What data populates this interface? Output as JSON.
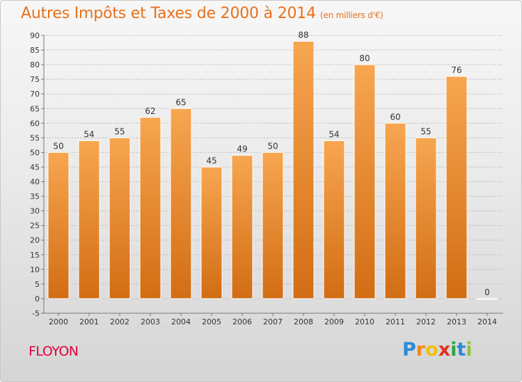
{
  "header": {
    "title": "Autres Impôts et Taxes de 2000 à 2014",
    "unit": "(en milliers d'€)"
  },
  "footer": {
    "commune": "FLOYON",
    "logo_letters": [
      "P",
      "r",
      "o",
      "x",
      "i",
      "t",
      "i"
    ],
    "logo_colors": [
      "#2b8ad6",
      "#f08a1e",
      "#f2c010",
      "#e0301e",
      "#2aa845",
      "#2b8ad6",
      "#8bc43e"
    ]
  },
  "colors": {
    "bar_top": "#f7a650",
    "bar_bottom": "#d26d14",
    "bar_edge": "#ffffff",
    "grid": "#bbbbbb",
    "text": "#333333",
    "title": "#e8701a"
  },
  "chart_data": {
    "type": "bar",
    "categories": [
      "2000",
      "2001",
      "2002",
      "2003",
      "2004",
      "2005",
      "2006",
      "2007",
      "2008",
      "2009",
      "2010",
      "2011",
      "2012",
      "2013",
      "2014"
    ],
    "values": [
      50,
      54,
      55,
      62,
      65,
      45,
      49,
      50,
      88,
      54,
      80,
      60,
      55,
      76,
      0
    ],
    "value_labels": [
      "50",
      "54",
      "55",
      "62",
      "65",
      "45",
      "49",
      "50",
      "88",
      "54",
      "80",
      "60",
      "55",
      "76",
      "0"
    ],
    "yticks": [
      "-5",
      "0",
      "5",
      "10",
      "15",
      "20",
      "25",
      "30",
      "35",
      "40",
      "45",
      "50",
      "55",
      "60",
      "65",
      "70",
      "75",
      "80",
      "85",
      "90"
    ],
    "ylim": [
      -5,
      90
    ],
    "ystep": 5,
    "grid": true,
    "legend": "none"
  }
}
